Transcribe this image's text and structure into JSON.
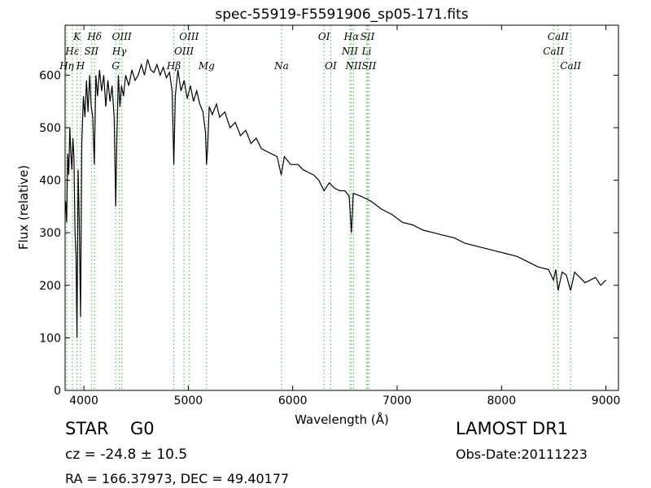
{
  "chart_data": {
    "type": "line",
    "title": "spec-55919-F5591906_sp05-171.fits",
    "x_label": "Wavelength (Å)",
    "y_label": "Flux (relative)",
    "color": "#000000",
    "x": [
      3825,
      3835,
      3845,
      3855,
      3865,
      3875,
      3885,
      3895,
      3905,
      3915,
      3925,
      3934,
      3945,
      3955,
      3968,
      3980,
      3995,
      4010,
      4025,
      4040,
      4055,
      4070,
      4085,
      4100,
      4115,
      4130,
      4150,
      4170,
      4190,
      4210,
      4230,
      4250,
      4270,
      4290,
      4305,
      4315,
      4330,
      4345,
      4360,
      4380,
      4400,
      4430,
      4460,
      4490,
      4520,
      4550,
      4580,
      4610,
      4640,
      4670,
      4700,
      4730,
      4760,
      4790,
      4820,
      4845,
      4861,
      4875,
      4900,
      4930,
      4960,
      4990,
      5020,
      5050,
      5080,
      5110,
      5140,
      5165,
      5175,
      5185,
      5200,
      5230,
      5270,
      5300,
      5350,
      5400,
      5450,
      5500,
      5550,
      5600,
      5650,
      5700,
      5750,
      5800,
      5850,
      5890,
      5920,
      5980,
      6050,
      6100,
      6150,
      6200,
      6250,
      6300,
      6350,
      6400,
      6450,
      6500,
      6540,
      6563,
      6580,
      6650,
      6750,
      6850,
      6950,
      7050,
      7150,
      7250,
      7350,
      7450,
      7550,
      7650,
      7750,
      7850,
      7950,
      8050,
      8150,
      8250,
      8350,
      8450,
      8498,
      8520,
      8542,
      8580,
      8620,
      8662,
      8700,
      8750,
      8800,
      8850,
      8900,
      8950,
      9000
    ],
    "values": [
      360,
      320,
      450,
      410,
      500,
      450,
      420,
      480,
      440,
      300,
      250,
      100,
      420,
      330,
      140,
      470,
      560,
      520,
      590,
      530,
      600,
      540,
      520,
      430,
      600,
      560,
      610,
      570,
      600,
      540,
      590,
      550,
      580,
      520,
      350,
      470,
      600,
      540,
      580,
      560,
      600,
      580,
      610,
      590,
      600,
      620,
      600,
      630,
      610,
      605,
      620,
      600,
      615,
      595,
      605,
      570,
      430,
      560,
      610,
      570,
      590,
      555,
      580,
      550,
      570,
      545,
      530,
      490,
      430,
      460,
      540,
      525,
      545,
      520,
      530,
      500,
      510,
      485,
      495,
      470,
      480,
      460,
      455,
      450,
      445,
      410,
      445,
      430,
      430,
      420,
      415,
      410,
      400,
      380,
      395,
      385,
      380,
      380,
      370,
      300,
      375,
      370,
      360,
      345,
      335,
      320,
      315,
      305,
      300,
      295,
      290,
      280,
      275,
      270,
      265,
      260,
      255,
      245,
      235,
      230,
      210,
      230,
      190,
      225,
      220,
      190,
      225,
      215,
      205,
      210,
      215,
      200,
      210
    ],
    "xlim": [
      3820,
      9120
    ],
    "ylim": [
      0,
      695
    ],
    "xticks": [
      4000,
      5000,
      6000,
      7000,
      8000,
      9000
    ],
    "yticks": [
      0,
      100,
      200,
      300,
      400,
      500,
      600
    ],
    "line_color": "#66bb66",
    "spectral_lines": [
      {
        "label": "K",
        "wavelength": 3934
      },
      {
        "label": "Hδ",
        "wavelength": 4102
      },
      {
        "label": "OIII",
        "wavelength": 4363
      },
      {
        "label": "OIII",
        "wavelength": 5007
      },
      {
        "label": "OI",
        "wavelength": 6300
      },
      {
        "label": "Hα",
        "wavelength": 6563
      },
      {
        "label": "SII",
        "wavelength": 6716
      },
      {
        "label": "CaII",
        "wavelength": 8542
      },
      {
        "label": "Hε",
        "wavelength": 3889
      },
      {
        "label": "SII",
        "wavelength": 4072
      },
      {
        "label": "Hγ",
        "wavelength": 4340
      },
      {
        "label": "OIII",
        "wavelength": 4959
      },
      {
        "label": "NII",
        "wavelength": 6548
      },
      {
        "label": "Li",
        "wavelength": 6708
      },
      {
        "label": "CaII",
        "wavelength": 8498
      },
      {
        "label": "Hη",
        "wavelength": 3835
      },
      {
        "label": "H",
        "wavelength": 3968
      },
      {
        "label": "G",
        "wavelength": 4305
      },
      {
        "label": "Hβ",
        "wavelength": 4861
      },
      {
        "label": "Mg",
        "wavelength": 5175
      },
      {
        "label": "Na",
        "wavelength": 5893
      },
      {
        "label": "OI",
        "wavelength": 6364
      },
      {
        "label": "NII",
        "wavelength": 6583
      },
      {
        "label": "SII",
        "wavelength": 6731
      },
      {
        "label": "CaII",
        "wavelength": 8662
      }
    ]
  },
  "footer": {
    "object_class": "STAR",
    "subclass": "G0",
    "survey": "LAMOST DR1",
    "redshift": "cz = -24.8 ± 10.5",
    "obs_date": "Obs-Date:20111223",
    "coords": "RA = 166.37973, DEC = 49.40177"
  }
}
